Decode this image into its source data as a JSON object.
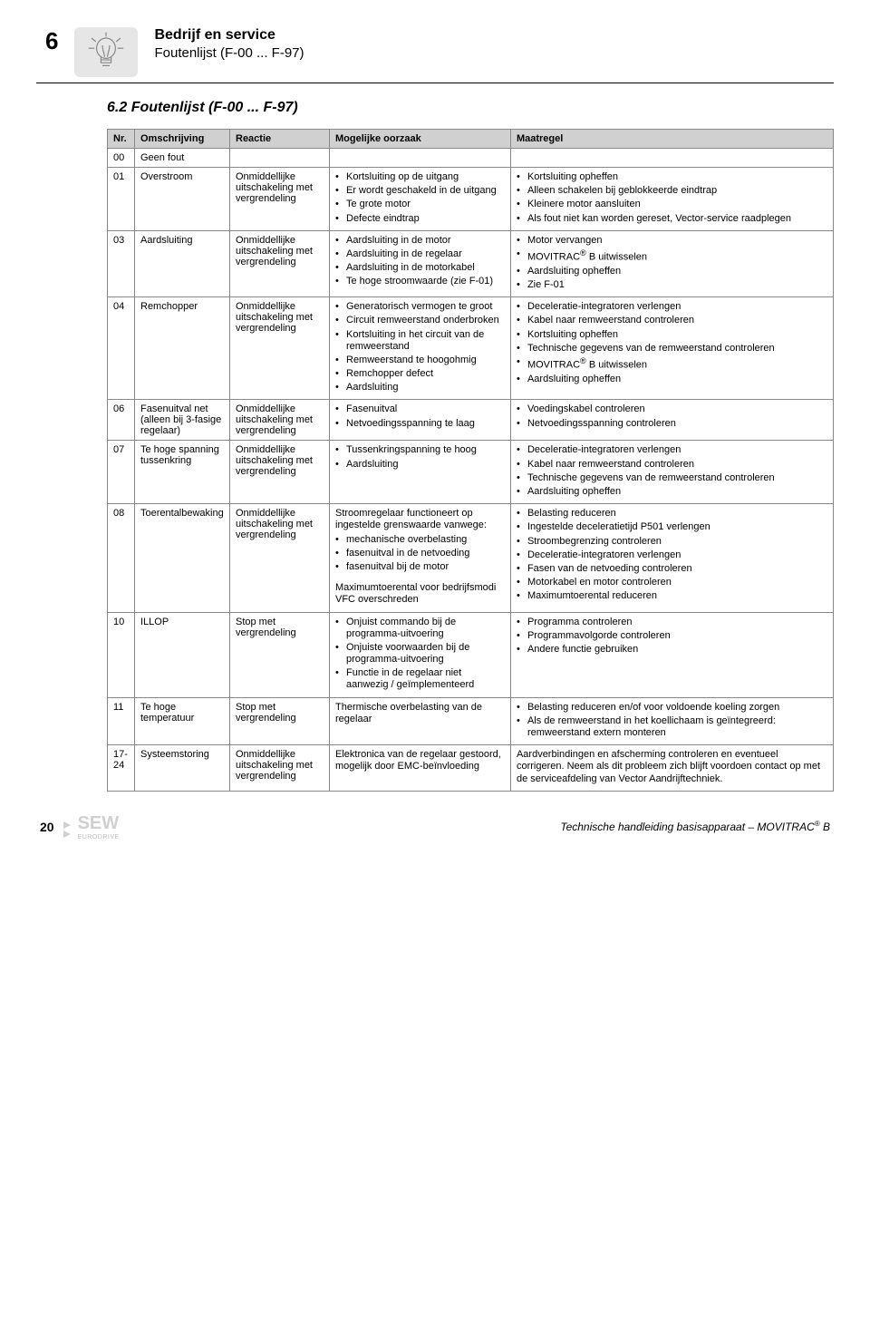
{
  "header": {
    "chapter_number": "6",
    "title": "Bedrijf en service",
    "subtitle": "Foutenlijst (F-00 ... F-97)",
    "section": "6.2   Foutenlijst (F-00 ... F-97)"
  },
  "table": {
    "columns": [
      "Nr.",
      "Omschrijving",
      "Reactie",
      "Mogelijke oorzaak",
      "Maatregel"
    ],
    "rows": [
      {
        "nr": "00",
        "oms": "Geen fout",
        "rea": "",
        "mog_plain": [],
        "mog": [],
        "maa_plain": [],
        "maa": []
      },
      {
        "nr": "01",
        "oms": "Overstroom",
        "rea": "Onmiddellijke uitschakeling met vergrendeling",
        "mog": [
          "Kortsluiting op de uitgang",
          "Er wordt geschakeld in de uitgang",
          "Te grote motor",
          "Defecte eindtrap"
        ],
        "maa": [
          "Kortsluiting opheffen",
          "Alleen schakelen bij geblokkeerde eindtrap",
          "Kleinere motor aansluiten",
          "Als fout niet kan worden gereset, Vector-service raadplegen"
        ]
      },
      {
        "nr": "03",
        "oms": "Aardsluiting",
        "rea": "Onmiddellijke uitschakeling met vergrendeling",
        "mog": [
          "Aardsluiting in de motor",
          "Aardsluiting in de regelaar",
          "Aardsluiting in de motorkabel",
          "Te hoge stroomwaarde (zie F-01)"
        ],
        "maa": [
          "Motor vervangen",
          "MOVITRAC® B uitwisselen",
          "Aardsluiting opheffen",
          "Zie F-01"
        ]
      },
      {
        "nr": "04",
        "oms": "Remchopper",
        "rea": "Onmiddellijke uitschakeling met vergrendeling",
        "mog": [
          "Generatorisch vermogen te groot",
          "Circuit remweerstand onderbroken",
          "Kortsluiting in het circuit van de remweerstand",
          "Remweerstand te hoogohmig",
          "Remchopper defect",
          "Aardsluiting"
        ],
        "maa": [
          "Deceleratie-integratoren verlengen",
          "Kabel naar remweerstand controleren",
          "Kortsluiting opheffen",
          "Technische gegevens van de remweerstand controleren",
          "MOVITRAC® B uitwisselen",
          "Aardsluiting opheffen"
        ]
      },
      {
        "nr": "06",
        "oms": "Fasenuitval net (alleen bij 3-fasige regelaar)",
        "rea": "Onmiddellijke uitschakeling met vergrendeling",
        "mog": [
          "Fasenuitval",
          "Netvoedingsspanning te laag"
        ],
        "maa": [
          "Voedingskabel controleren",
          "Netvoedingsspanning controleren"
        ]
      },
      {
        "nr": "07",
        "oms": "Te hoge spanning tussenkring",
        "rea": "Onmiddellijke uitschakeling met vergrendeling",
        "mog": [
          "Tussenkringspanning te hoog",
          "Aardsluiting"
        ],
        "maa": [
          "Deceleratie-integratoren verlengen",
          "Kabel naar remweerstand controleren",
          "Technische gegevens van de remweerstand controleren",
          "Aardsluiting opheffen"
        ]
      },
      {
        "nr": "08",
        "oms": "Toerentalbewaking",
        "rea": "Onmiddellijke uitschakeling met vergrendeling",
        "mog_plain": [
          "Stroomregelaar functioneert op ingestelde grenswaarde vanwege:"
        ],
        "mog": [
          "mechanische overbelasting",
          "fasenuitval in de netvoeding",
          "fasenuitval bij de motor"
        ],
        "mog_plain_after": [
          "Maximumtoerental voor bedrijfsmodi VFC overschreden"
        ],
        "maa": [
          "Belasting reduceren",
          "Ingestelde deceleratietijd P501 verlengen",
          "Stroombegrenzing controleren",
          "Deceleratie-integratoren verlengen",
          "Fasen van de netvoeding controleren",
          "Motorkabel en motor controleren",
          "Maximumtoerental reduceren"
        ]
      },
      {
        "nr": "10",
        "oms": "ILLOP",
        "rea": "Stop met vergrendeling",
        "mog": [
          "Onjuist commando bij de programma-uitvoering",
          "Onjuiste voorwaarden bij de programma-uitvoering",
          "Functie in de regelaar niet aanwezig / geïmplementeerd"
        ],
        "maa": [
          "Programma controleren",
          "Programmavolgorde controleren",
          "Andere functie gebruiken"
        ]
      },
      {
        "nr": "11",
        "oms": "Te hoge temperatuur",
        "rea": "Stop met vergrendeling",
        "mog_plain": [
          "Thermische overbelasting van de regelaar"
        ],
        "mog": [],
        "maa": [
          "Belasting reduceren en/of voor voldoende koeling zorgen",
          "Als de remweerstand in het koellichaam is geïntegreerd: remweerstand extern monteren"
        ]
      },
      {
        "nr": "17-24",
        "oms": "Systeemstoring",
        "rea": "Onmiddellijke uitschakeling met vergrendeling",
        "mog_plain": [
          "Elektronica van de regelaar gestoord, mogelijk door EMC-beïnvloeding"
        ],
        "mog": [],
        "maa_plain": [
          "Aardverbindingen en afscherming controleren en eventueel corrigeren. Neem als dit probleem zich blijft voordoen contact op met de serviceafdeling van Vector Aandrijftechniek."
        ],
        "maa": []
      }
    ]
  },
  "footer": {
    "page": "20",
    "doc_title": "Technische handleiding basisapparaat – MOVITRAC",
    "doc_suffix": " B"
  }
}
